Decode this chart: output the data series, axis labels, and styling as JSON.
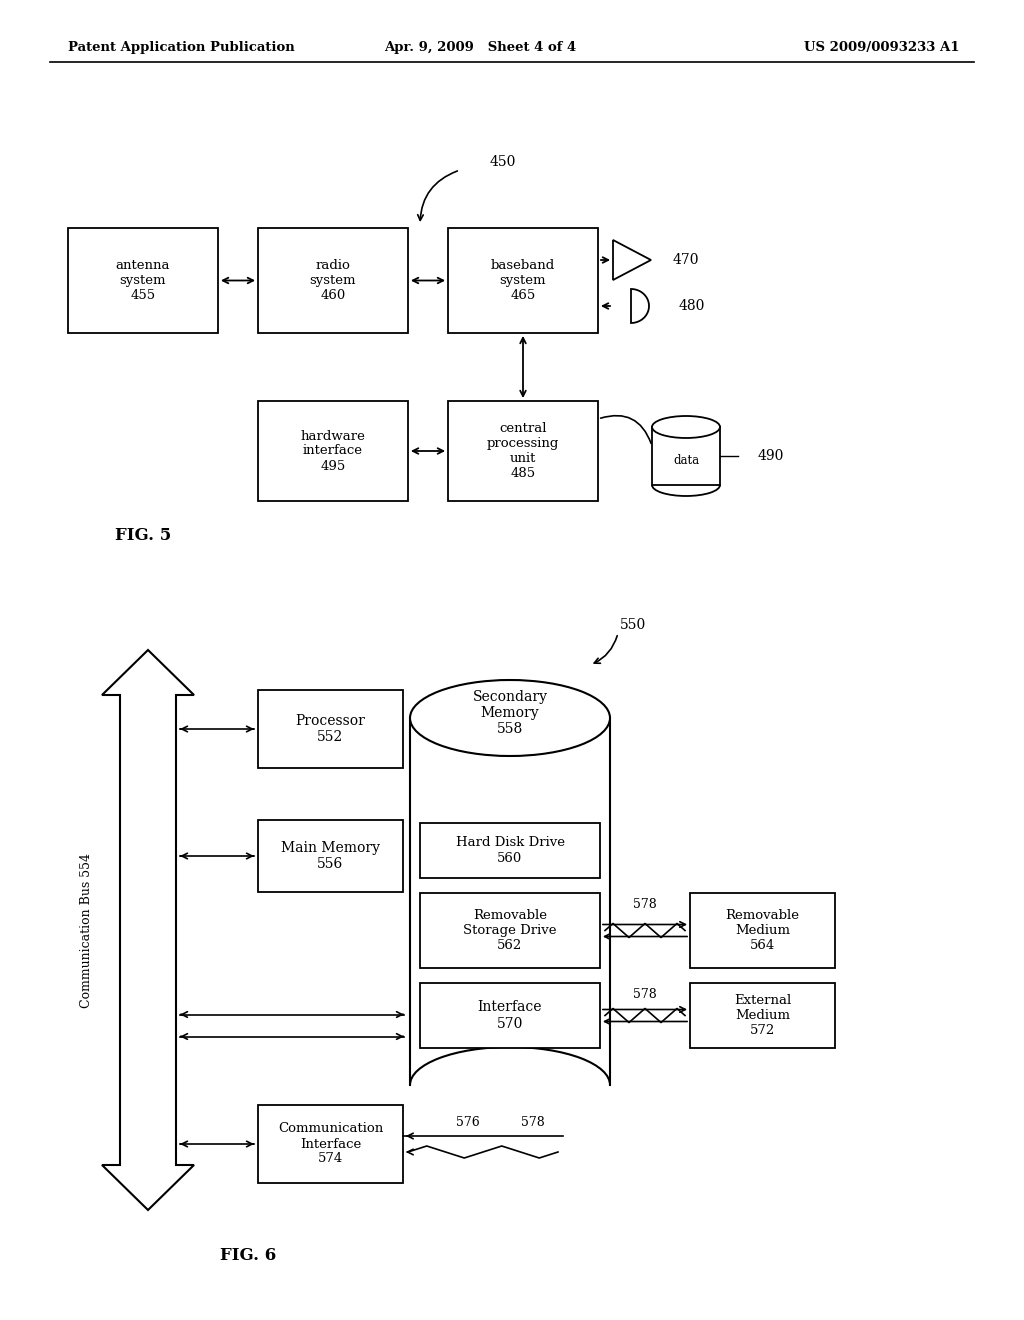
{
  "bg_color": "#ffffff",
  "header_left": "Patent Application Publication",
  "header_center": "Apr. 9, 2009   Sheet 4 of 4",
  "header_right": "US 2009/0093233 A1"
}
